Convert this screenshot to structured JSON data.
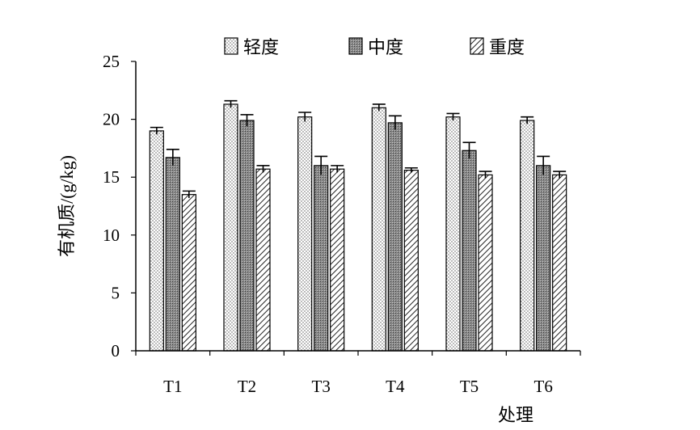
{
  "chart_data": {
    "type": "bar",
    "title": "",
    "xlabel": "处理",
    "ylabel": "有机质/(g/kg)",
    "categories": [
      "T1",
      "T2",
      "T3",
      "T4",
      "T5",
      "T6"
    ],
    "ylim": [
      0,
      25
    ],
    "yticks": [
      "0",
      "5",
      "10",
      "15",
      "20",
      "25"
    ],
    "grid": false,
    "legend_position": "top",
    "series": [
      {
        "name": "轻度",
        "values": [
          19.0,
          21.3,
          20.2,
          21.0,
          20.2,
          19.9
        ],
        "errors": [
          0.3,
          0.3,
          0.4,
          0.3,
          0.3,
          0.3
        ],
        "pattern": "dots"
      },
      {
        "name": "中度",
        "values": [
          16.7,
          19.9,
          16.0,
          19.7,
          17.3,
          16.0
        ],
        "errors": [
          0.7,
          0.5,
          0.8,
          0.6,
          0.7,
          0.8
        ],
        "pattern": "dense-grey"
      },
      {
        "name": "重度",
        "values": [
          13.5,
          15.7,
          15.7,
          15.6,
          15.2,
          15.2
        ],
        "errors": [
          0.3,
          0.3,
          0.3,
          0.2,
          0.3,
          0.3
        ],
        "pattern": "hatch"
      }
    ]
  }
}
